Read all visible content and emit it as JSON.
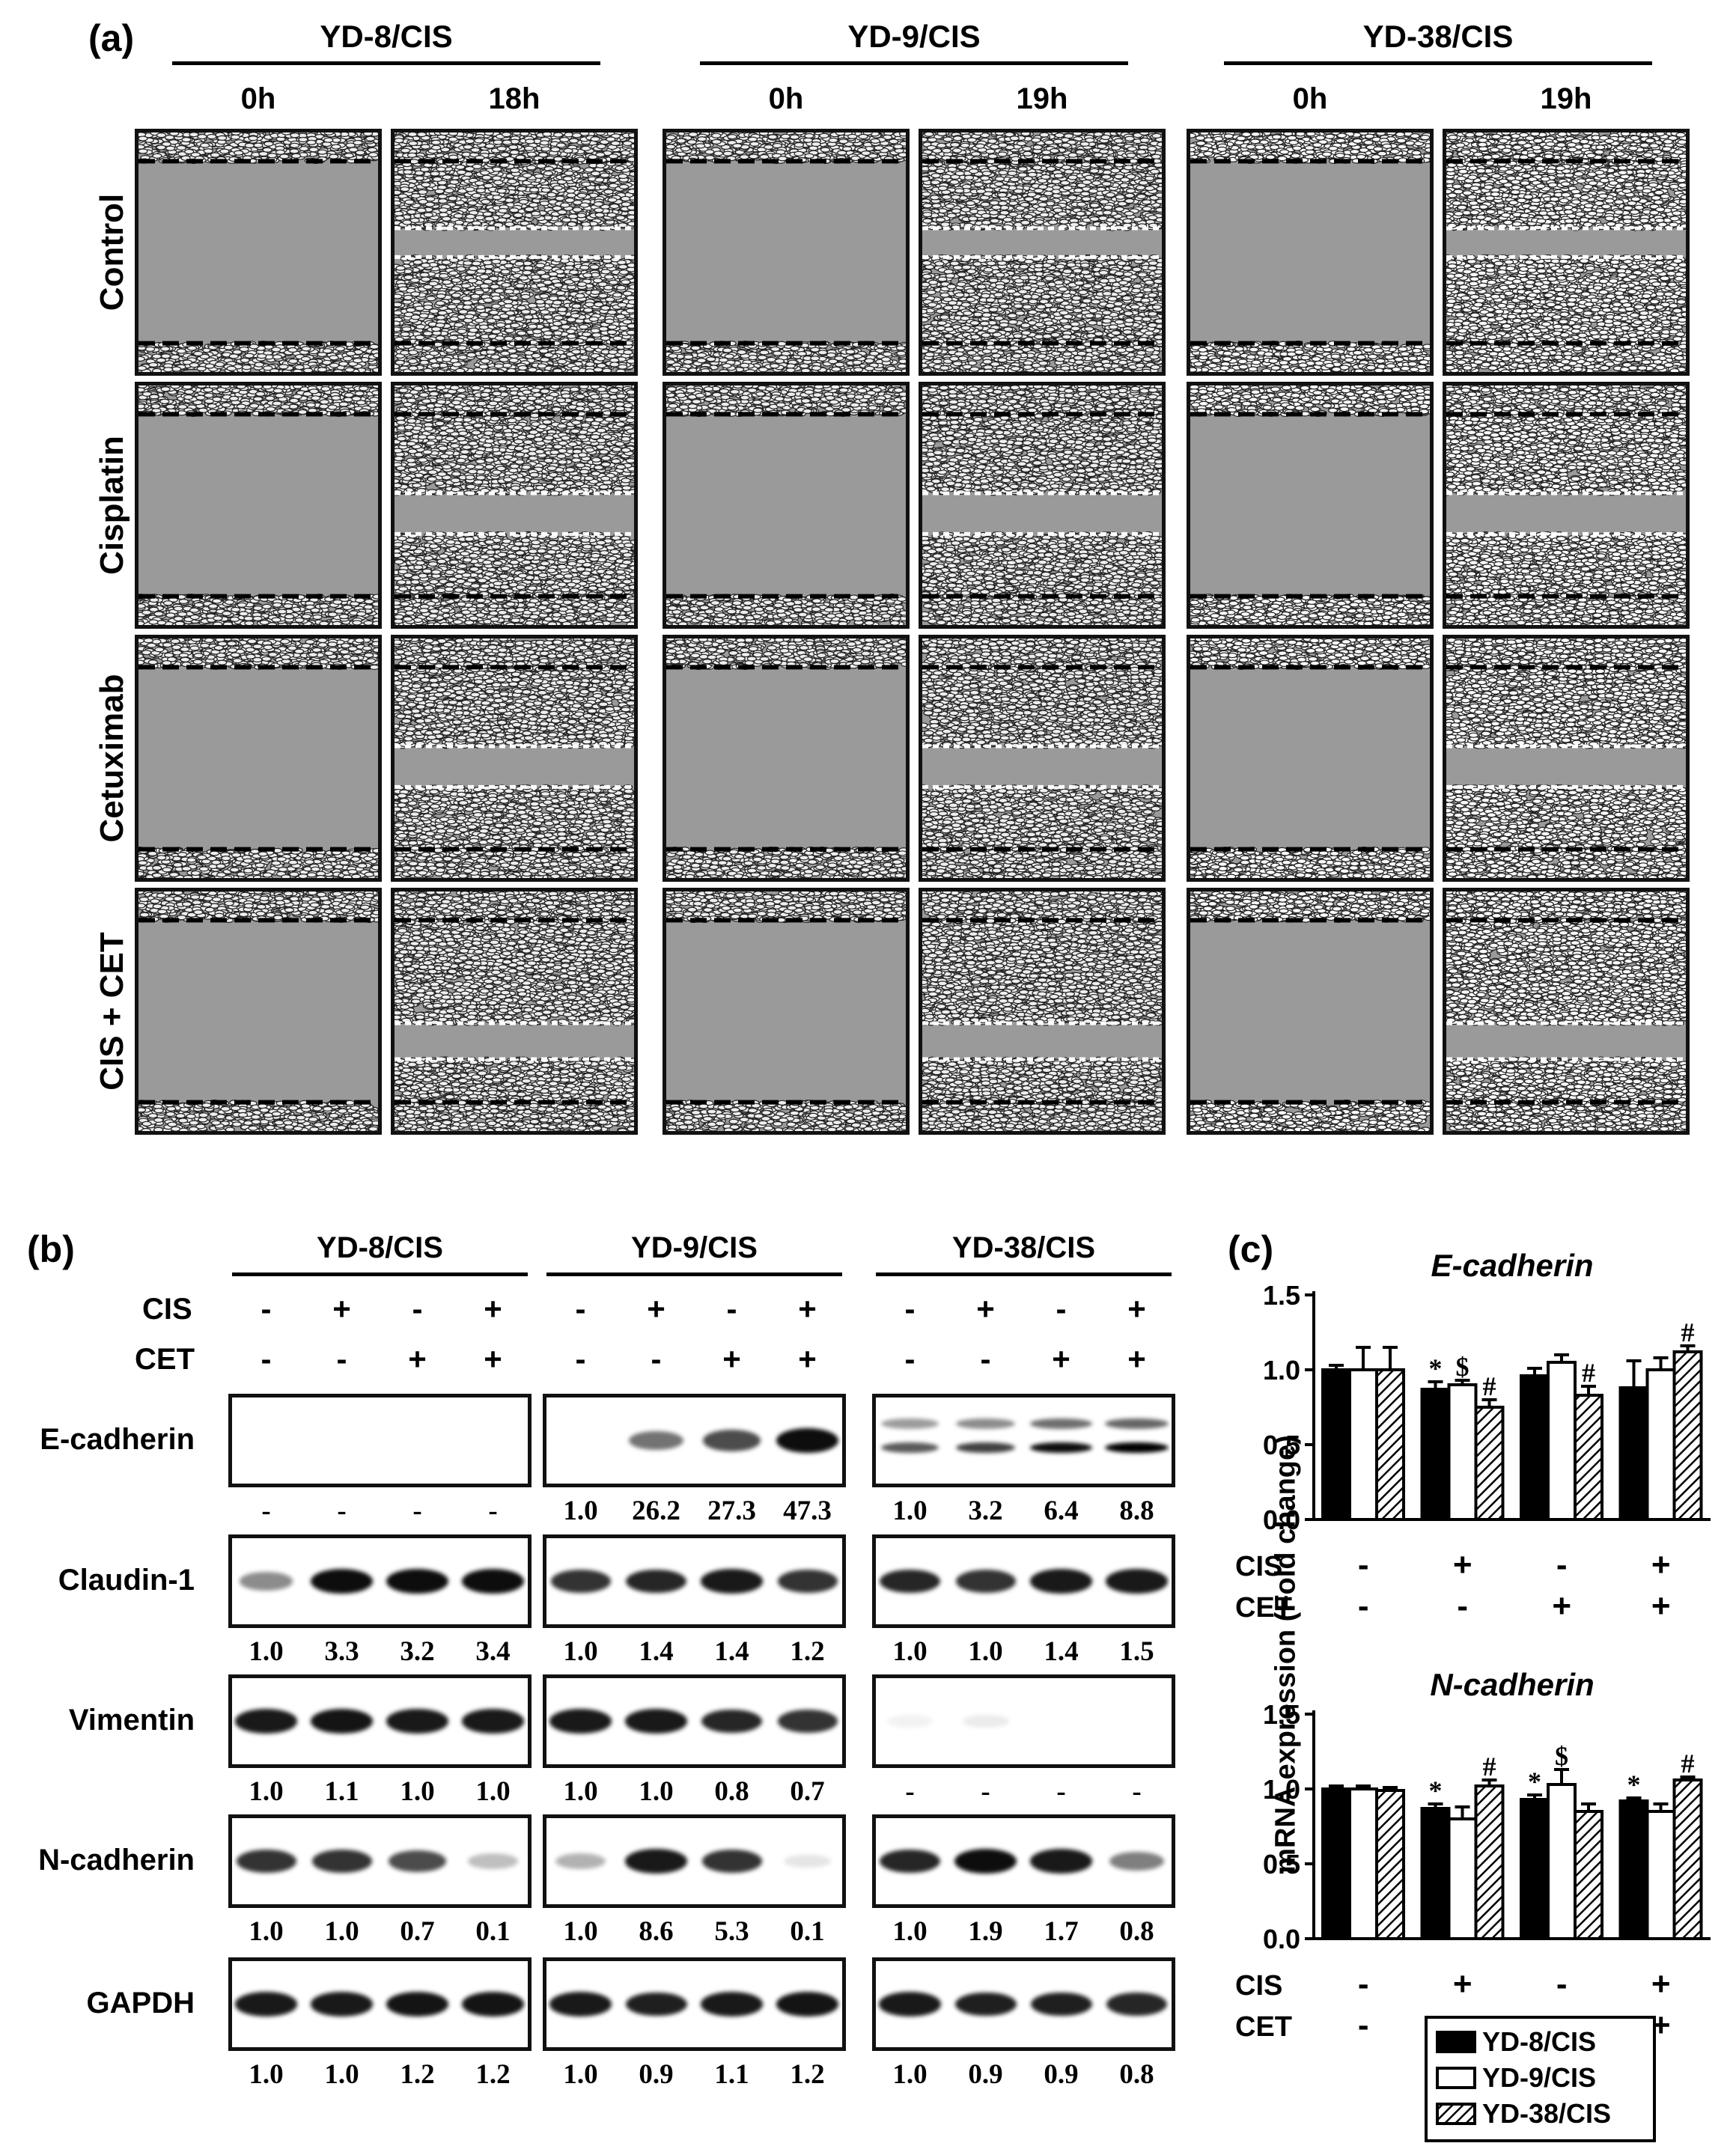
{
  "panel_a": {
    "label": "(a)",
    "cell_lines": [
      {
        "name": "YD-8/CIS",
        "times": [
          "0h",
          "18h"
        ]
      },
      {
        "name": "YD-9/CIS",
        "times": [
          "0h",
          "19h"
        ]
      },
      {
        "name": "YD-38/CIS",
        "times": [
          "0h",
          "19h"
        ]
      }
    ],
    "treatments": [
      "Control",
      "Cisplatin",
      "Cetuximab",
      "CIS + CET"
    ]
  },
  "panel_b": {
    "label": "(b)",
    "cell_lines": [
      "YD-8/CIS",
      "YD-9/CIS",
      "YD-38/CIS"
    ],
    "cis_label": "CIS",
    "cet_label": "CET",
    "cis_signs": [
      "-",
      "+",
      "-",
      "+"
    ],
    "cet_signs": [
      "-",
      "-",
      "+",
      "+"
    ],
    "proteins": [
      {
        "name": "E-cadherin",
        "values": [
          [
            "-",
            "-",
            "-",
            "-"
          ],
          [
            "1.0",
            "26.2",
            "27.3",
            "47.3"
          ],
          [
            "1.0",
            "3.2",
            "6.4",
            "8.8"
          ]
        ]
      },
      {
        "name": "Claudin-1",
        "values": [
          [
            "1.0",
            "3.3",
            "3.2",
            "3.4"
          ],
          [
            "1.0",
            "1.4",
            "1.4",
            "1.2"
          ],
          [
            "1.0",
            "1.0",
            "1.4",
            "1.5"
          ]
        ]
      },
      {
        "name": "Vimentin",
        "values": [
          [
            "1.0",
            "1.1",
            "1.0",
            "1.0"
          ],
          [
            "1.0",
            "1.0",
            "0.8",
            "0.7"
          ],
          [
            "-",
            "-",
            "-",
            "-"
          ]
        ]
      },
      {
        "name": "N-cadherin",
        "values": [
          [
            "1.0",
            "1.0",
            "0.7",
            "0.1"
          ],
          [
            "1.0",
            "8.6",
            "5.3",
            "0.1"
          ],
          [
            "1.0",
            "1.9",
            "1.7",
            "0.8"
          ]
        ]
      },
      {
        "name": "GAPDH",
        "values": [
          [
            "1.0",
            "1.0",
            "1.2",
            "1.2"
          ],
          [
            "1.0",
            "0.9",
            "1.1",
            "1.2"
          ],
          [
            "1.0",
            "0.9",
            "0.9",
            "0.8"
          ]
        ]
      }
    ],
    "band_intensity": [
      [
        [
          0,
          0,
          0,
          0
        ],
        [
          0,
          0.55,
          0.7,
          0.95
        ],
        [
          0.65,
          0.75,
          0.95,
          1.0
        ]
      ],
      [
        [
          0.45,
          0.95,
          0.95,
          0.95
        ],
        [
          0.8,
          0.85,
          0.9,
          0.8
        ],
        [
          0.85,
          0.8,
          0.9,
          0.9
        ]
      ],
      [
        [
          0.9,
          0.92,
          0.9,
          0.9
        ],
        [
          0.9,
          0.9,
          0.85,
          0.8
        ],
        [
          0.05,
          0.08,
          0,
          0
        ]
      ],
      [
        [
          0.8,
          0.8,
          0.7,
          0.25
        ],
        [
          0.3,
          0.9,
          0.8,
          0.1
        ],
        [
          0.85,
          0.95,
          0.9,
          0.5
        ]
      ],
      [
        [
          0.9,
          0.9,
          0.92,
          0.92
        ],
        [
          0.9,
          0.88,
          0.9,
          0.92
        ],
        [
          0.9,
          0.88,
          0.88,
          0.85
        ]
      ]
    ]
  },
  "panel_c": {
    "label": "(c)",
    "ylabel": "mRNA expression (Fold change)",
    "cis_label": "CIS",
    "cet_label": "CET",
    "cis_signs": [
      "-",
      "+",
      "-",
      "+"
    ],
    "cet_signs": [
      "-",
      "-",
      "+",
      "+"
    ],
    "legend": [
      "YD-8/CIS",
      "YD-9/CIS",
      "YD-38/CIS"
    ]
  },
  "chart_data": [
    {
      "type": "bar",
      "title": "E-cadherin",
      "ylabel": "mRNA expression (Fold change)",
      "ylim": [
        0,
        1.5
      ],
      "yticks": [
        "0.0",
        "0.5",
        "1.0",
        "1.5"
      ],
      "series": [
        {
          "name": "YD-8/CIS",
          "values": [
            1.0,
            0.87,
            0.96,
            0.88
          ],
          "errors": [
            0.03,
            0.05,
            0.05,
            0.18
          ],
          "marks": [
            "",
            "*",
            "",
            ""
          ]
        },
        {
          "name": "YD-9/CIS",
          "values": [
            1.0,
            0.9,
            1.05,
            1.0
          ],
          "errors": [
            0.15,
            0.03,
            0.05,
            0.08
          ],
          "marks": [
            "",
            "$",
            "",
            ""
          ]
        },
        {
          "name": "YD-38/CIS",
          "values": [
            1.0,
            0.75,
            0.83,
            1.12
          ],
          "errors": [
            0.15,
            0.05,
            0.06,
            0.04
          ],
          "marks": [
            "",
            "#",
            "#",
            "#"
          ]
        }
      ]
    },
    {
      "type": "bar",
      "title": "N-cadherin",
      "ylabel": "mRNA expression (Fold change)",
      "ylim": [
        0,
        1.5
      ],
      "yticks": [
        "0.0",
        "0.5",
        "1.0",
        "1.5"
      ],
      "series": [
        {
          "name": "YD-8/CIS",
          "values": [
            1.0,
            0.87,
            0.93,
            0.92
          ],
          "errors": [
            0.02,
            0.03,
            0.03,
            0.02
          ],
          "marks": [
            "",
            "*",
            "*",
            "*"
          ]
        },
        {
          "name": "YD-9/CIS",
          "values": [
            1.0,
            0.8,
            1.03,
            0.85
          ],
          "errors": [
            0.02,
            0.08,
            0.1,
            0.05
          ],
          "marks": [
            "",
            "",
            "$",
            ""
          ]
        },
        {
          "name": "YD-38/CIS",
          "values": [
            0.99,
            1.02,
            0.85,
            1.06
          ],
          "errors": [
            0.02,
            0.04,
            0.05,
            0.02
          ],
          "marks": [
            "",
            "#",
            "",
            "#"
          ]
        }
      ]
    }
  ]
}
